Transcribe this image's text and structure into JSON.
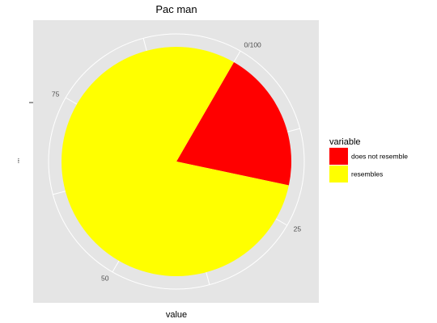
{
  "chart_data": {
    "type": "pie",
    "title": "Pac man",
    "xlabel": "value",
    "ylabel": "",
    "y_tick_label": "\"\"",
    "axis": {
      "min": 0,
      "max": 100,
      "ticks": [
        {
          "value": 0,
          "label": "0/100"
        },
        {
          "value": 25,
          "label": "25"
        },
        {
          "value": 50,
          "label": "50"
        },
        {
          "value": 75,
          "label": "75"
        }
      ]
    },
    "series": [
      {
        "name": "does not resemble",
        "value": 20,
        "color": "#ff0000"
      },
      {
        "name": "resembles",
        "value": 80,
        "color": "#ffff00"
      }
    ],
    "legend": {
      "title": "variable",
      "position": "right"
    },
    "panel_background": "#e5e5e5",
    "grid_color": "#ffffff",
    "grid": true
  }
}
